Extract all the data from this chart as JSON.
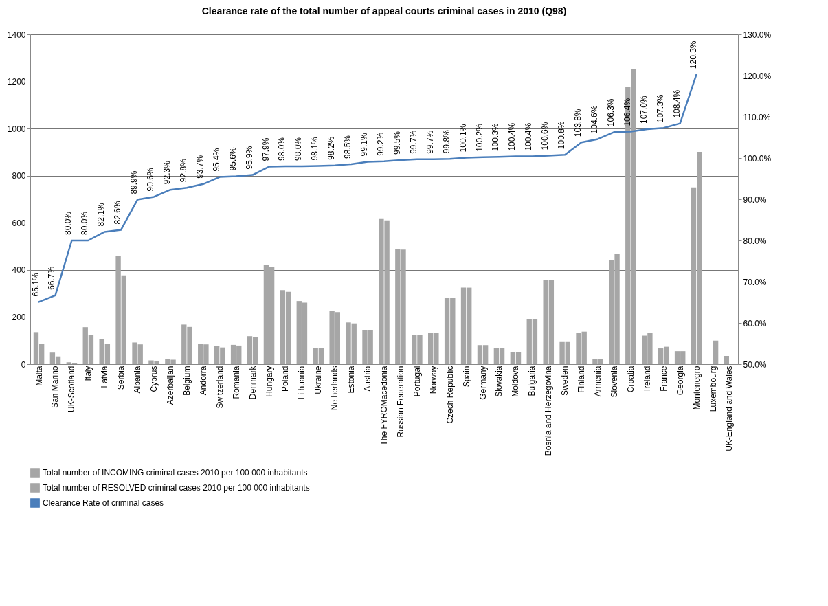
{
  "chart_data": {
    "type": "bar",
    "title": "Clearance rate of the total number of appeal courts criminal cases in 2010 (Q98)",
    "categories": [
      "Malta",
      "San Marino",
      "UK-Scotland",
      "Italy",
      "Latvia",
      "Serbia",
      "Albania",
      "Cyprus",
      "Azerbaijan",
      "Belgium",
      "Andorra",
      "Switzerland",
      "Romania",
      "Denmark",
      "Hungary",
      "Poland",
      "Lithuania",
      "Ukraine",
      "Netherlands",
      "Estonia",
      "Austria",
      "The FYROMacedonia",
      "Russian Federation",
      "Portugal",
      "Norway",
      "Czech Republic",
      "Spain",
      "Germany",
      "Slovakia",
      "Moldova",
      "Bulgaria",
      "Bosnia and Herzegovina",
      "Sweden",
      "Finland",
      "Armenia",
      "Slovenia",
      "Croatia",
      "Ireland",
      "France",
      "Georgia",
      "Montenegro",
      "Luxembourg",
      "UK-England and Wales"
    ],
    "series": [
      {
        "name": "Total number of INCOMING criminal cases 2010 per 100 000 inhabitants",
        "color": "#a6a6a6",
        "values": [
          136,
          49,
          8,
          157,
          108,
          458,
          92,
          16,
          22,
          168,
          87,
          76,
          82,
          119,
          422,
          314,
          268,
          69,
          225,
          177,
          144,
          616,
          489,
          123,
          133,
          282,
          325,
          81,
          69,
          52,
          191,
          356,
          94,
          132,
          22,
          442,
          1176,
          121,
          67,
          55,
          750,
          null,
          35
        ]
      },
      {
        "name": "Total number of RESOLVED criminal cases 2010 per 100 000 inhabitants",
        "color": "#a6a6a6",
        "values": [
          87,
          33,
          5,
          125,
          87,
          377,
          84,
          14,
          19,
          158,
          84,
          71,
          79,
          114,
          412,
          307,
          261,
          69,
          221,
          173,
          144,
          610,
          486,
          123,
          133,
          282,
          325,
          81,
          69,
          52,
          191,
          356,
          94,
          138,
          22,
          469,
          1251,
          132,
          74,
          55,
          901,
          100,
          null
        ]
      },
      {
        "name": "Clearance Rate of criminal cases",
        "type": "line",
        "axis": "y2",
        "color": "#4a7ebb",
        "values": [
          65.1,
          66.7,
          80.0,
          80.0,
          82.1,
          82.6,
          89.9,
          90.6,
          92.3,
          92.8,
          93.7,
          95.4,
          95.6,
          95.9,
          97.9,
          98.0,
          98.0,
          98.1,
          98.2,
          98.5,
          99.1,
          99.2,
          99.5,
          99.7,
          99.7,
          99.8,
          100.1,
          100.2,
          100.3,
          100.4,
          100.4,
          100.6,
          100.8,
          103.8,
          104.6,
          106.3,
          106.4,
          107.0,
          107.3,
          108.4,
          120.3,
          null,
          null
        ],
        "value_labels": [
          "65.1%",
          "66.7%",
          "80.0%",
          "80.0%",
          "82.1%",
          "82.6%",
          "89.9%",
          "90.6%",
          "92.3%",
          "92.8%",
          "93.7%",
          "95.4%",
          "95.6%",
          "95.9%",
          "97.9%",
          "98.0%",
          "98.0%",
          "98.1%",
          "98.2%",
          "98.5%",
          "99.1%",
          "99.2%",
          "99.5%",
          "99.7%",
          "99.7%",
          "99.8%",
          "100.1%",
          "100.2%",
          "100.3%",
          "100.4%",
          "100.4%",
          "100.6%",
          "100.8%",
          "103.8%",
          "104.6%",
          "106.3%",
          "106.4%",
          "107.0%",
          "107.3%",
          "108.4%",
          "120.3%",
          null,
          null
        ]
      }
    ],
    "ylim": [
      0,
      1400
    ],
    "yticks": [
      0,
      200,
      400,
      600,
      800,
      1000,
      1200,
      1400
    ],
    "y2lim": [
      50,
      130
    ],
    "y2ticks": [
      {
        "value": 50,
        "label": "50.0%"
      },
      {
        "value": 60,
        "label": "60.0%"
      },
      {
        "value": 70,
        "label": "70.0%"
      },
      {
        "value": 80,
        "label": "80.0%"
      },
      {
        "value": 90,
        "label": "90.0%"
      },
      {
        "value": 100,
        "label": "100.0%"
      },
      {
        "value": 110,
        "label": "110.0%"
      },
      {
        "value": 120,
        "label": "120.0%"
      },
      {
        "value": 130,
        "label": "130.0%"
      }
    ],
    "grid": "y",
    "legend": "bottom"
  }
}
